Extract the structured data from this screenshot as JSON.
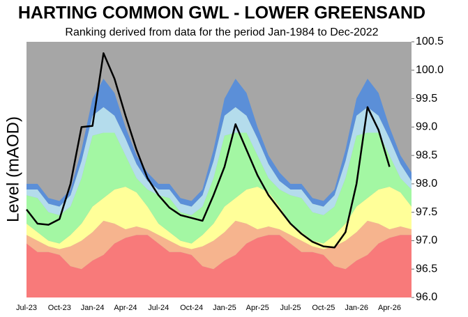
{
  "chart_data": {
    "type": "area",
    "title": "HARTING COMMON GWL - LOWER GREENSAND",
    "subtitle": "Ranking derived from data for the period Jan-1984 to Dec-2022",
    "y_label": "Level (mAOD)",
    "categories": [
      "Jul-23",
      null,
      null,
      "Oct-23",
      null,
      null,
      "Jan-24",
      null,
      null,
      "Apr-24",
      null,
      null,
      "Jul-24",
      null,
      null,
      "Oct-24",
      null,
      null,
      "Jan-25",
      null,
      null,
      "Apr-25",
      null,
      null,
      "Jul-25",
      null,
      null,
      "Oct-25",
      null,
      null,
      "Jan-26",
      null,
      null,
      "Apr-26",
      null,
      null
    ],
    "ylim": [
      96.0,
      100.5
    ],
    "yticks": [
      {
        "value": 96,
        "label": "96.0"
      },
      96.5,
      {
        "value": 97,
        "label": "97.0"
      },
      97.5,
      {
        "value": 98,
        "label": "98.0"
      },
      98.5,
      {
        "value": 99,
        "label": "99.0"
      },
      99.5,
      {
        "value": 100,
        "label": "100.0"
      },
      100.5
    ],
    "background": "#a6a6a6",
    "series": [
      {
        "color": "#f87a7a",
        "values": [
          96.95,
          96.8,
          96.8,
          96.75,
          96.55,
          96.5,
          96.65,
          96.75,
          96.95,
          97.05,
          97.1,
          97.1,
          96.95,
          96.8,
          96.8,
          96.75,
          96.55,
          96.5,
          96.65,
          96.75,
          96.95,
          97.05,
          97.1,
          97.1,
          96.95,
          96.8,
          96.8,
          96.75,
          96.55,
          96.5,
          96.65,
          96.75,
          96.95,
          97.05,
          97.1,
          97.1
        ]
      },
      {
        "color": "#f6b48e",
        "values": [
          97.1,
          97.0,
          96.9,
          96.85,
          96.9,
          97.0,
          97.15,
          97.35,
          97.3,
          97.2,
          97.25,
          97.2,
          97.1,
          97.0,
          96.9,
          96.85,
          96.9,
          97.0,
          97.15,
          97.35,
          97.3,
          97.2,
          97.25,
          97.2,
          97.1,
          97.0,
          96.9,
          96.85,
          96.9,
          97.0,
          97.15,
          97.35,
          97.3,
          97.2,
          97.25,
          97.2
        ]
      },
      {
        "color": "#ffff99",
        "values": [
          97.3,
          97.15,
          97.0,
          96.95,
          97.1,
          97.3,
          97.6,
          97.75,
          97.9,
          97.95,
          97.85,
          97.6,
          97.3,
          97.15,
          97.0,
          96.95,
          97.1,
          97.3,
          97.6,
          97.75,
          97.9,
          97.95,
          97.85,
          97.6,
          97.3,
          97.15,
          97.0,
          96.95,
          97.1,
          97.3,
          97.6,
          97.75,
          97.9,
          97.95,
          97.85,
          97.6
        ]
      },
      {
        "color": "#a3f7a3",
        "values": [
          97.8,
          97.75,
          97.5,
          97.45,
          97.6,
          98.1,
          98.85,
          98.9,
          98.9,
          98.5,
          98.1,
          97.9,
          97.8,
          97.75,
          97.5,
          97.45,
          97.6,
          98.1,
          98.85,
          98.9,
          98.9,
          98.5,
          98.1,
          97.9,
          97.8,
          97.75,
          97.5,
          97.45,
          97.6,
          98.1,
          98.85,
          98.9,
          98.9,
          98.5,
          98.1,
          97.9
        ]
      },
      {
        "color": "#b4dcec",
        "values": [
          97.9,
          97.9,
          97.65,
          97.6,
          97.8,
          98.4,
          99.2,
          99.35,
          99.2,
          98.8,
          98.35,
          98.05,
          97.9,
          97.9,
          97.65,
          97.6,
          97.8,
          98.4,
          99.2,
          99.35,
          99.2,
          98.8,
          98.35,
          98.05,
          97.9,
          97.9,
          97.65,
          97.6,
          97.8,
          98.4,
          99.2,
          99.35,
          99.2,
          98.8,
          98.35,
          98.05
        ]
      },
      {
        "color": "#5b8fd8",
        "values": [
          98.0,
          98.0,
          97.75,
          97.7,
          97.9,
          98.6,
          99.5,
          99.85,
          99.6,
          99.0,
          98.5,
          98.2,
          98.0,
          98.0,
          97.75,
          97.7,
          97.9,
          98.6,
          99.5,
          99.85,
          99.6,
          99.0,
          98.5,
          98.2,
          98.0,
          98.0,
          97.75,
          97.7,
          97.9,
          98.6,
          99.5,
          99.85,
          99.6,
          99.0,
          98.5,
          98.2
        ]
      }
    ],
    "line": {
      "color": "#000000",
      "values": [
        97.55,
        97.3,
        97.28,
        97.38,
        98.0,
        99.0,
        99.02,
        100.3,
        99.85,
        99.2,
        98.6,
        98.1,
        97.8,
        97.58,
        97.45,
        97.4,
        97.35,
        97.8,
        98.3,
        99.05,
        98.6,
        98.15,
        97.8,
        97.55,
        97.3,
        97.12,
        96.98,
        96.9,
        96.88,
        97.15,
        98.0,
        99.35,
        98.95,
        98.3,
        null,
        null
      ]
    }
  }
}
